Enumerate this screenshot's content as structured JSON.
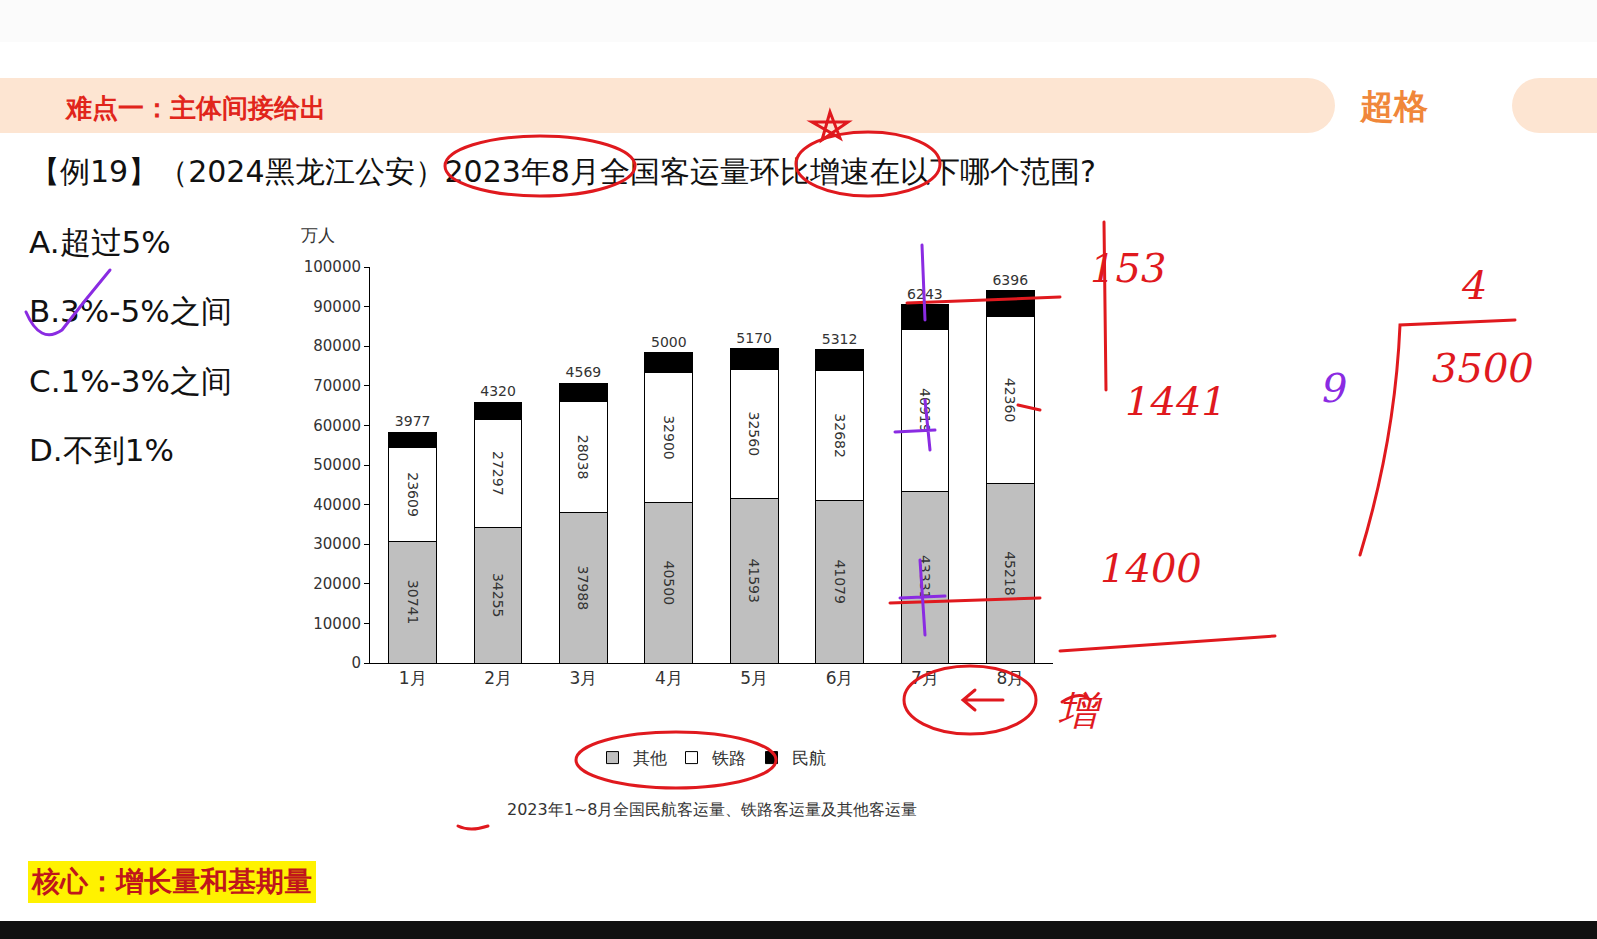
{
  "slide": {
    "header": "难点一：主体间接给出",
    "logo": "超格",
    "question": "【例19】（2024黑龙江公安）2023年8月全国客运量环比增速在以下哪个范围?",
    "options": [
      "A.超过5%",
      "B.3%-5%之间",
      "C.1%-3%之间",
      "D.不到1%"
    ],
    "note": "核心：增长量和基期量",
    "handwritten_notes": [
      "153",
      "1441",
      "1400",
      "增",
      "4",
      "3500",
      "9"
    ]
  },
  "chart_data": {
    "type": "bar",
    "title": "2023年1~8月全国民航客运量、铁路客运量及其他客运量",
    "y_label": "万人",
    "categories": [
      "1月",
      "2月",
      "3月",
      "4月",
      "5月",
      "6月",
      "7月",
      "8月"
    ],
    "series": [
      {
        "name": "其他",
        "color": "#bfbfbf",
        "values": [
          30741,
          34255,
          37988,
          40500,
          41593,
          41079,
          43331,
          45218
        ]
      },
      {
        "name": "铁路",
        "color": "#ffffff",
        "values": [
          23609,
          27297,
          28038,
          32900,
          32560,
          32682,
          40919,
          42360
        ]
      },
      {
        "name": "民航",
        "color": "#000000",
        "values": [
          3977,
          4320,
          4569,
          5000,
          5170,
          5312,
          6243,
          6396
        ]
      }
    ],
    "stacked": true,
    "data_labels": true,
    "ylim": [
      0,
      100000
    ],
    "yticks": [
      0,
      10000,
      20000,
      30000,
      40000,
      50000,
      60000,
      70000,
      80000,
      90000,
      100000
    ],
    "grid": false,
    "legend": "bottom"
  }
}
